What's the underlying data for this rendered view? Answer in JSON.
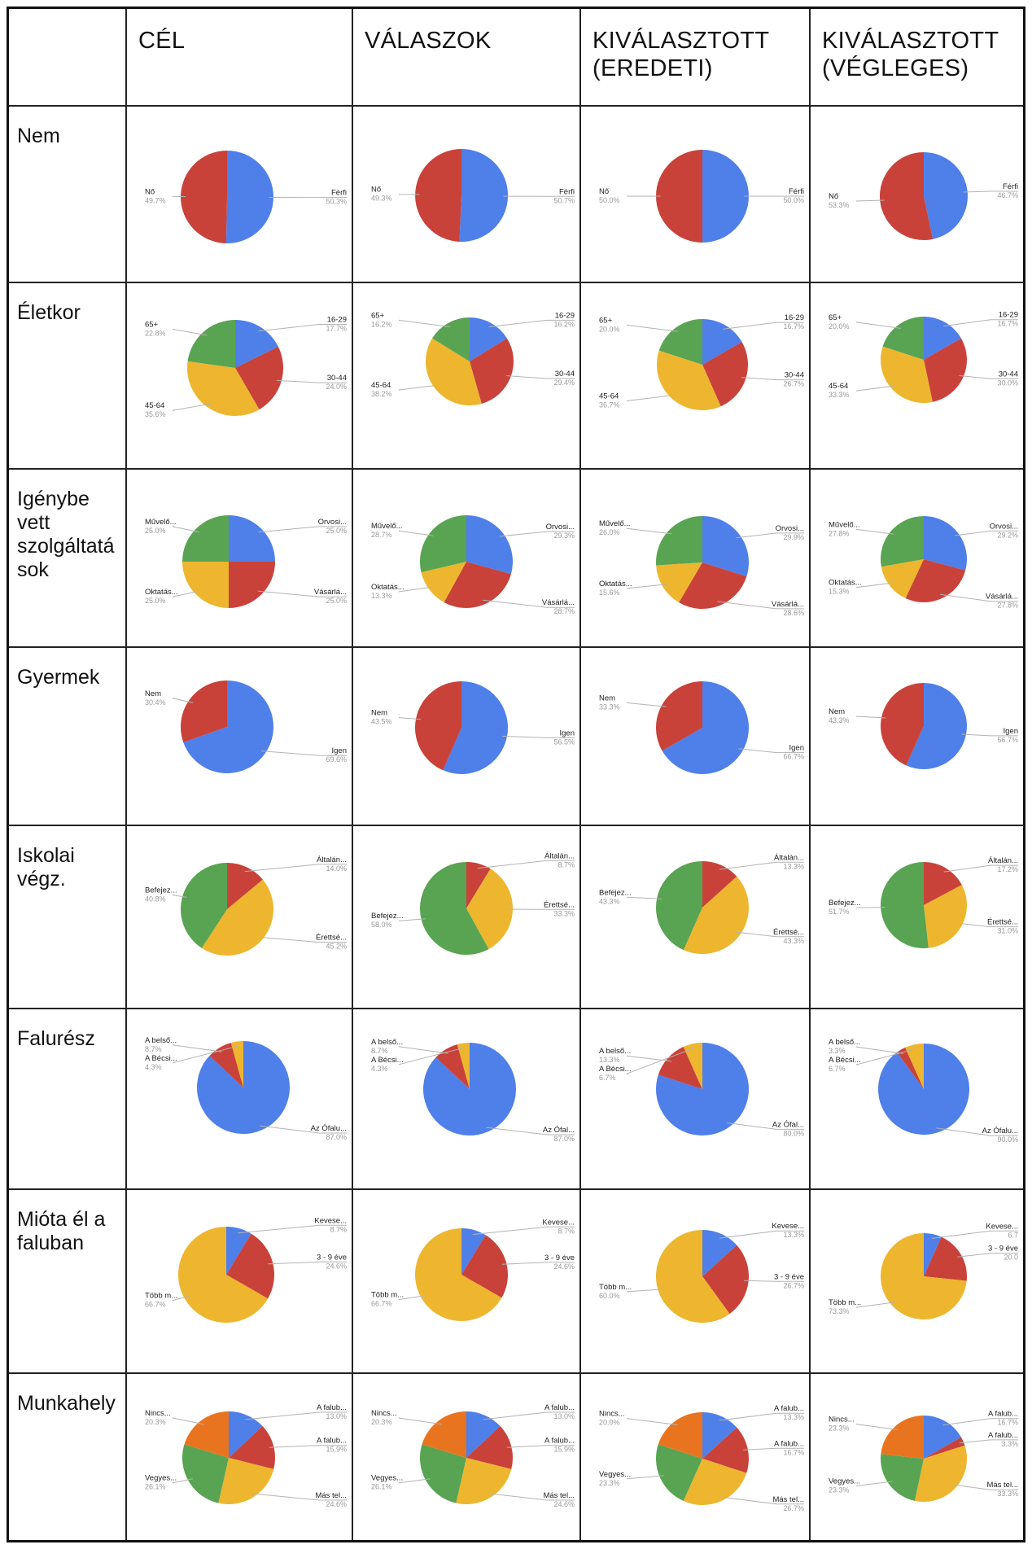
{
  "corner": "",
  "columns": [
    "CÉL",
    "VÁLASZOK",
    "KIVÁLASZTOTT\n(EREDETI)",
    "KIVÁLASZTOTT\n(VÉGLEGES)"
  ],
  "rows": [
    "Nem",
    "Életkor",
    "Igénybe\nvett\nszolgáltatá\nsok",
    "Gyermek",
    "Iskolai\nvégz.",
    "Falurész",
    "Mióta él a\nfaluban",
    "Munkahely"
  ],
  "colors": {
    "blue": "#4f7fe8",
    "red": "#c9423a",
    "yellow": "#edb62e",
    "green": "#58a452",
    "orange": "#e9741f",
    "label": "#222222",
    "value": "#999999",
    "leader": "#b3b3b3"
  },
  "chart_data": [
    {
      "type": "pie",
      "row": "Nem",
      "column": "CÉL",
      "slices": [
        {
          "label": "Férfi",
          "value": 50.3,
          "pct": "50.3%",
          "color": "blue"
        },
        {
          "label": "Nő",
          "value": 49.7,
          "pct": "49.7%",
          "color": "red"
        }
      ]
    },
    {
      "type": "pie",
      "row": "Nem",
      "column": "VÁLASZOK",
      "slices": [
        {
          "label": "Férfi",
          "value": 50.7,
          "pct": "50.7%",
          "color": "blue"
        },
        {
          "label": "Nő",
          "value": 49.3,
          "pct": "49.3%",
          "color": "red"
        }
      ]
    },
    {
      "type": "pie",
      "row": "Nem",
      "column": "KIVÁLASZTOTT (EREDETI)",
      "slices": [
        {
          "label": "Férfi",
          "value": 50.0,
          "pct": "50.0%",
          "color": "blue"
        },
        {
          "label": "Nő",
          "value": 50.0,
          "pct": "50.0%",
          "color": "red"
        }
      ]
    },
    {
      "type": "pie",
      "row": "Nem",
      "column": "KIVÁLASZTOTT (VÉGLEGES)",
      "slices": [
        {
          "label": "Férfi",
          "value": 46.7,
          "pct": "46.7%",
          "color": "blue"
        },
        {
          "label": "Nő",
          "value": 53.3,
          "pct": "53.3%",
          "color": "red"
        }
      ]
    },
    {
      "type": "pie",
      "row": "Életkor",
      "column": "CÉL",
      "slices": [
        {
          "label": "16-29",
          "value": 17.7,
          "pct": "17.7%",
          "color": "blue"
        },
        {
          "label": "30-44",
          "value": 24.0,
          "pct": "24.0%",
          "color": "red"
        },
        {
          "label": "45-64",
          "value": 35.6,
          "pct": "35.6%",
          "color": "yellow"
        },
        {
          "label": "65+",
          "value": 22.8,
          "pct": "22.8%",
          "color": "green"
        }
      ]
    },
    {
      "type": "pie",
      "row": "Életkor",
      "column": "VÁLASZOK",
      "slices": [
        {
          "label": "16-29",
          "value": 16.2,
          "pct": "16.2%",
          "color": "blue"
        },
        {
          "label": "30-44",
          "value": 29.4,
          "pct": "29.4%",
          "color": "red"
        },
        {
          "label": "45-64",
          "value": 38.2,
          "pct": "38.2%",
          "color": "yellow"
        },
        {
          "label": "65+",
          "value": 16.2,
          "pct": "16.2%",
          "color": "green"
        }
      ]
    },
    {
      "type": "pie",
      "row": "Életkor",
      "column": "KIVÁLASZTOTT (EREDETI)",
      "slices": [
        {
          "label": "16-29",
          "value": 16.7,
          "pct": "16.7%",
          "color": "blue"
        },
        {
          "label": "30-44",
          "value": 26.7,
          "pct": "26.7%",
          "color": "red"
        },
        {
          "label": "45-64",
          "value": 36.7,
          "pct": "36.7%",
          "color": "yellow"
        },
        {
          "label": "65+",
          "value": 20.0,
          "pct": "20.0%",
          "color": "green"
        }
      ]
    },
    {
      "type": "pie",
      "row": "Életkor",
      "column": "KIVÁLASZTOTT (VÉGLEGES)",
      "slices": [
        {
          "label": "16-29",
          "value": 16.7,
          "pct": "16.7%",
          "color": "blue"
        },
        {
          "label": "30-44",
          "value": 30.0,
          "pct": "30.0%",
          "color": "red"
        },
        {
          "label": "45-64",
          "value": 33.3,
          "pct": "33.3%",
          "color": "yellow"
        },
        {
          "label": "65+",
          "value": 20.0,
          "pct": "20.0%",
          "color": "green"
        }
      ]
    },
    {
      "type": "pie",
      "row": "Igénybe vett szolgáltatások",
      "column": "CÉL",
      "slices": [
        {
          "label": "Orvosi...",
          "value": 25.0,
          "pct": "25.0%",
          "color": "blue"
        },
        {
          "label": "Vásárlá...",
          "value": 25.0,
          "pct": "25.0%",
          "color": "red"
        },
        {
          "label": "Oktatás...",
          "value": 25.0,
          "pct": "25.0%",
          "color": "yellow"
        },
        {
          "label": "Művelő...",
          "value": 25.0,
          "pct": "25.0%",
          "color": "green"
        }
      ]
    },
    {
      "type": "pie",
      "row": "Igénybe vett szolgáltatások",
      "column": "VÁLASZOK",
      "slices": [
        {
          "label": "Orvosi...",
          "value": 29.3,
          "pct": "29.3%",
          "color": "blue"
        },
        {
          "label": "Vásárlá...",
          "value": 28.7,
          "pct": "28.7%",
          "color": "red"
        },
        {
          "label": "Oktatás...",
          "value": 13.3,
          "pct": "13.3%",
          "color": "yellow"
        },
        {
          "label": "Művelő...",
          "value": 28.7,
          "pct": "28.7%",
          "color": "green"
        }
      ]
    },
    {
      "type": "pie",
      "row": "Igénybe vett szolgáltatások",
      "column": "KIVÁLASZTOTT (EREDETI)",
      "slices": [
        {
          "label": "Orvosi...",
          "value": 29.9,
          "pct": "29.9%",
          "color": "blue"
        },
        {
          "label": "Vásárlá...",
          "value": 28.6,
          "pct": "28.6%",
          "color": "red"
        },
        {
          "label": "Oktatás...",
          "value": 15.6,
          "pct": "15.6%",
          "color": "yellow"
        },
        {
          "label": "Művelő...",
          "value": 26.0,
          "pct": "26.0%",
          "color": "green"
        }
      ]
    },
    {
      "type": "pie",
      "row": "Igénybe vett szolgáltatások",
      "column": "KIVÁLASZTOTT (VÉGLEGES)",
      "slices": [
        {
          "label": "Orvosi...",
          "value": 29.2,
          "pct": "29.2%",
          "color": "blue"
        },
        {
          "label": "Vásárlá...",
          "value": 27.8,
          "pct": "27.8%",
          "color": "red"
        },
        {
          "label": "Oktatás...",
          "value": 15.3,
          "pct": "15.3%",
          "color": "yellow"
        },
        {
          "label": "Művelő...",
          "value": 27.8,
          "pct": "27.8%",
          "color": "green"
        }
      ]
    },
    {
      "type": "pie",
      "row": "Gyermek",
      "column": "CÉL",
      "slices": [
        {
          "label": "Igen",
          "value": 69.6,
          "pct": "69.6%",
          "color": "blue"
        },
        {
          "label": "Nem",
          "value": 30.4,
          "pct": "30.4%",
          "color": "red"
        }
      ]
    },
    {
      "type": "pie",
      "row": "Gyermek",
      "column": "VÁLASZOK",
      "slices": [
        {
          "label": "Igen",
          "value": 56.5,
          "pct": "56.5%",
          "color": "blue"
        },
        {
          "label": "Nem",
          "value": 43.5,
          "pct": "43.5%",
          "color": "red"
        }
      ]
    },
    {
      "type": "pie",
      "row": "Gyermek",
      "column": "KIVÁLASZTOTT (EREDETI)",
      "slices": [
        {
          "label": "Igen",
          "value": 66.7,
          "pct": "66.7%",
          "color": "blue"
        },
        {
          "label": "Nem",
          "value": 33.3,
          "pct": "33.3%",
          "color": "red"
        }
      ]
    },
    {
      "type": "pie",
      "row": "Gyermek",
      "column": "KIVÁLASZTOTT (VÉGLEGES)",
      "slices": [
        {
          "label": "Igen",
          "value": 56.7,
          "pct": "56.7%",
          "color": "blue"
        },
        {
          "label": "Nem",
          "value": 43.3,
          "pct": "43.3%",
          "color": "red"
        }
      ]
    },
    {
      "type": "pie",
      "row": "Iskolai végz.",
      "column": "CÉL",
      "slices": [
        {
          "label": "Általán...",
          "value": 14.0,
          "pct": "14.0%",
          "color": "red"
        },
        {
          "label": "Érettsé...",
          "value": 45.2,
          "pct": "45.2%",
          "color": "yellow"
        },
        {
          "label": "Befejez...",
          "value": 40.8,
          "pct": "40.8%",
          "color": "green"
        }
      ]
    },
    {
      "type": "pie",
      "row": "Iskolai végz.",
      "column": "VÁLASZOK",
      "slices": [
        {
          "label": "Általán...",
          "value": 8.7,
          "pct": "8.7%",
          "color": "red"
        },
        {
          "label": "Érettsé...",
          "value": 33.3,
          "pct": "33.3%",
          "color": "yellow"
        },
        {
          "label": "Befejez...",
          "value": 58.0,
          "pct": "58.0%",
          "color": "green"
        }
      ]
    },
    {
      "type": "pie",
      "row": "Iskolai végz.",
      "column": "KIVÁLASZTOTT (EREDETI)",
      "slices": [
        {
          "label": "Általán...",
          "value": 13.3,
          "pct": "13.3%",
          "color": "red"
        },
        {
          "label": "Érettsé...",
          "value": 43.3,
          "pct": "43.3%",
          "color": "yellow"
        },
        {
          "label": "Befejez...",
          "value": 43.3,
          "pct": "43.3%",
          "color": "green"
        }
      ]
    },
    {
      "type": "pie",
      "row": "Iskolai végz.",
      "column": "KIVÁLASZTOTT (VÉGLEGES)",
      "slices": [
        {
          "label": "Általán...",
          "value": 17.2,
          "pct": "17.2%",
          "color": "red"
        },
        {
          "label": "Érettsé...",
          "value": 31.0,
          "pct": "31.0%",
          "color": "yellow"
        },
        {
          "label": "Befejez...",
          "value": 51.7,
          "pct": "51.7%",
          "color": "green"
        }
      ]
    },
    {
      "type": "pie",
      "row": "Falurész",
      "column": "CÉL",
      "slices": [
        {
          "label": "Az Ófalu...",
          "value": 87.0,
          "pct": "87.0%",
          "color": "blue"
        },
        {
          "label": "A belső...",
          "value": 8.7,
          "pct": "8.7%",
          "color": "red"
        },
        {
          "label": "A Bécsi...",
          "value": 4.3,
          "pct": "4.3%",
          "color": "yellow"
        }
      ]
    },
    {
      "type": "pie",
      "row": "Falurész",
      "column": "VÁLASZOK",
      "slices": [
        {
          "label": "Az Ófal...",
          "value": 87.0,
          "pct": "87.0%",
          "color": "blue"
        },
        {
          "label": "A belső...",
          "value": 8.7,
          "pct": "8.7%",
          "color": "red"
        },
        {
          "label": "A Bécsi...",
          "value": 4.3,
          "pct": "4.3%",
          "color": "yellow"
        }
      ]
    },
    {
      "type": "pie",
      "row": "Falurész",
      "column": "KIVÁLASZTOTT (EREDETI)",
      "slices": [
        {
          "label": "Az Ófal...",
          "value": 80.0,
          "pct": "80.0%",
          "color": "blue"
        },
        {
          "label": "A belső...",
          "value": 13.3,
          "pct": "13.3%",
          "color": "red"
        },
        {
          "label": "A Bécsi...",
          "value": 6.7,
          "pct": "6.7%",
          "color": "yellow"
        }
      ]
    },
    {
      "type": "pie",
      "row": "Falurész",
      "column": "KIVÁLASZTOTT (VÉGLEGES)",
      "slices": [
        {
          "label": "Az Ófalu...",
          "value": 90.0,
          "pct": "90.0%",
          "color": "blue"
        },
        {
          "label": "A belső...",
          "value": 3.3,
          "pct": "3.3%",
          "color": "red"
        },
        {
          "label": "A Bécsi...",
          "value": 6.7,
          "pct": "6.7%",
          "color": "yellow"
        }
      ]
    },
    {
      "type": "pie",
      "row": "Mióta él a faluban",
      "column": "CÉL",
      "slices": [
        {
          "label": "Kevese...",
          "value": 8.7,
          "pct": "8.7%",
          "color": "blue"
        },
        {
          "label": "3 - 9 éve",
          "value": 24.6,
          "pct": "24.6%",
          "color": "red"
        },
        {
          "label": "Több m...",
          "value": 66.7,
          "pct": "66.7%",
          "color": "yellow"
        }
      ]
    },
    {
      "type": "pie",
      "row": "Mióta él a faluban",
      "column": "VÁLASZOK",
      "slices": [
        {
          "label": "Kevese...",
          "value": 8.7,
          "pct": "8.7%",
          "color": "blue"
        },
        {
          "label": "3 - 9 éve",
          "value": 24.6,
          "pct": "24.6%",
          "color": "red"
        },
        {
          "label": "Több m...",
          "value": 66.7,
          "pct": "66.7%",
          "color": "yellow"
        }
      ]
    },
    {
      "type": "pie",
      "row": "Mióta él a faluban",
      "column": "KIVÁLASZTOTT (EREDETI)",
      "slices": [
        {
          "label": "Kevese...",
          "value": 13.3,
          "pct": "13.3%",
          "color": "blue"
        },
        {
          "label": "3 - 9 éve",
          "value": 26.7,
          "pct": "26.7%",
          "color": "red"
        },
        {
          "label": "Több m...",
          "value": 60.0,
          "pct": "60.0%",
          "color": "yellow"
        }
      ]
    },
    {
      "type": "pie",
      "row": "Mióta él a faluban",
      "column": "KIVÁLASZTOTT (VÉGLEGES)",
      "slices": [
        {
          "label": "Kevese...",
          "value": 6.7,
          "pct": "6.7",
          "color": "blue"
        },
        {
          "label": "3 - 9 éve",
          "value": 20.0,
          "pct": "20.0",
          "color": "red"
        },
        {
          "label": "Több m...",
          "value": 73.3,
          "pct": "73.3%",
          "color": "yellow"
        }
      ]
    },
    {
      "type": "pie",
      "row": "Munkahely",
      "column": "CÉL",
      "slices": [
        {
          "label": "A falub...",
          "value": 13.0,
          "pct": "13.0%",
          "color": "blue"
        },
        {
          "label": "A falub...",
          "value": 15.9,
          "pct": "15.9%",
          "color": "red"
        },
        {
          "label": "Más tel...",
          "value": 24.6,
          "pct": "24.6%",
          "color": "yellow"
        },
        {
          "label": "Vegyes...",
          "value": 26.1,
          "pct": "26.1%",
          "color": "green"
        },
        {
          "label": "Nincs...",
          "value": 20.3,
          "pct": "20.3%",
          "color": "orange"
        }
      ]
    },
    {
      "type": "pie",
      "row": "Munkahely",
      "column": "VÁLASZOK",
      "slices": [
        {
          "label": "A falub...",
          "value": 13.0,
          "pct": "13.0%",
          "color": "blue"
        },
        {
          "label": "A falub...",
          "value": 15.9,
          "pct": "15.9%",
          "color": "red"
        },
        {
          "label": "Más tel...",
          "value": 24.6,
          "pct": "24.6%",
          "color": "yellow"
        },
        {
          "label": "Vegyes...",
          "value": 26.1,
          "pct": "26.1%",
          "color": "green"
        },
        {
          "label": "Nincs...",
          "value": 20.3,
          "pct": "20.3%",
          "color": "orange"
        }
      ]
    },
    {
      "type": "pie",
      "row": "Munkahely",
      "column": "KIVÁLASZTOTT (EREDETI)",
      "slices": [
        {
          "label": "A falub...",
          "value": 13.3,
          "pct": "13.3%",
          "color": "blue"
        },
        {
          "label": "A falub...",
          "value": 16.7,
          "pct": "16.7%",
          "color": "red"
        },
        {
          "label": "Más tel...",
          "value": 26.7,
          "pct": "26.7%",
          "color": "yellow"
        },
        {
          "label": "Vegyes...",
          "value": 23.3,
          "pct": "23.3%",
          "color": "green"
        },
        {
          "label": "Nincs...",
          "value": 20.0,
          "pct": "20.0%",
          "color": "orange"
        }
      ]
    },
    {
      "type": "pie",
      "row": "Munkahely",
      "column": "KIVÁLASZTOTT (VÉGLEGES)",
      "slices": [
        {
          "label": "A falub...",
          "value": 16.7,
          "pct": "16.7%",
          "color": "blue"
        },
        {
          "label": "A falub...",
          "value": 3.3,
          "pct": "3.3%",
          "color": "red"
        },
        {
          "label": "Más tel...",
          "value": 33.3,
          "pct": "33.3%",
          "color": "yellow"
        },
        {
          "label": "Vegyes...",
          "value": 23.3,
          "pct": "23.3%",
          "color": "green"
        },
        {
          "label": "Nincs...",
          "value": 23.3,
          "pct": "23.3%",
          "color": "orange"
        }
      ]
    }
  ]
}
